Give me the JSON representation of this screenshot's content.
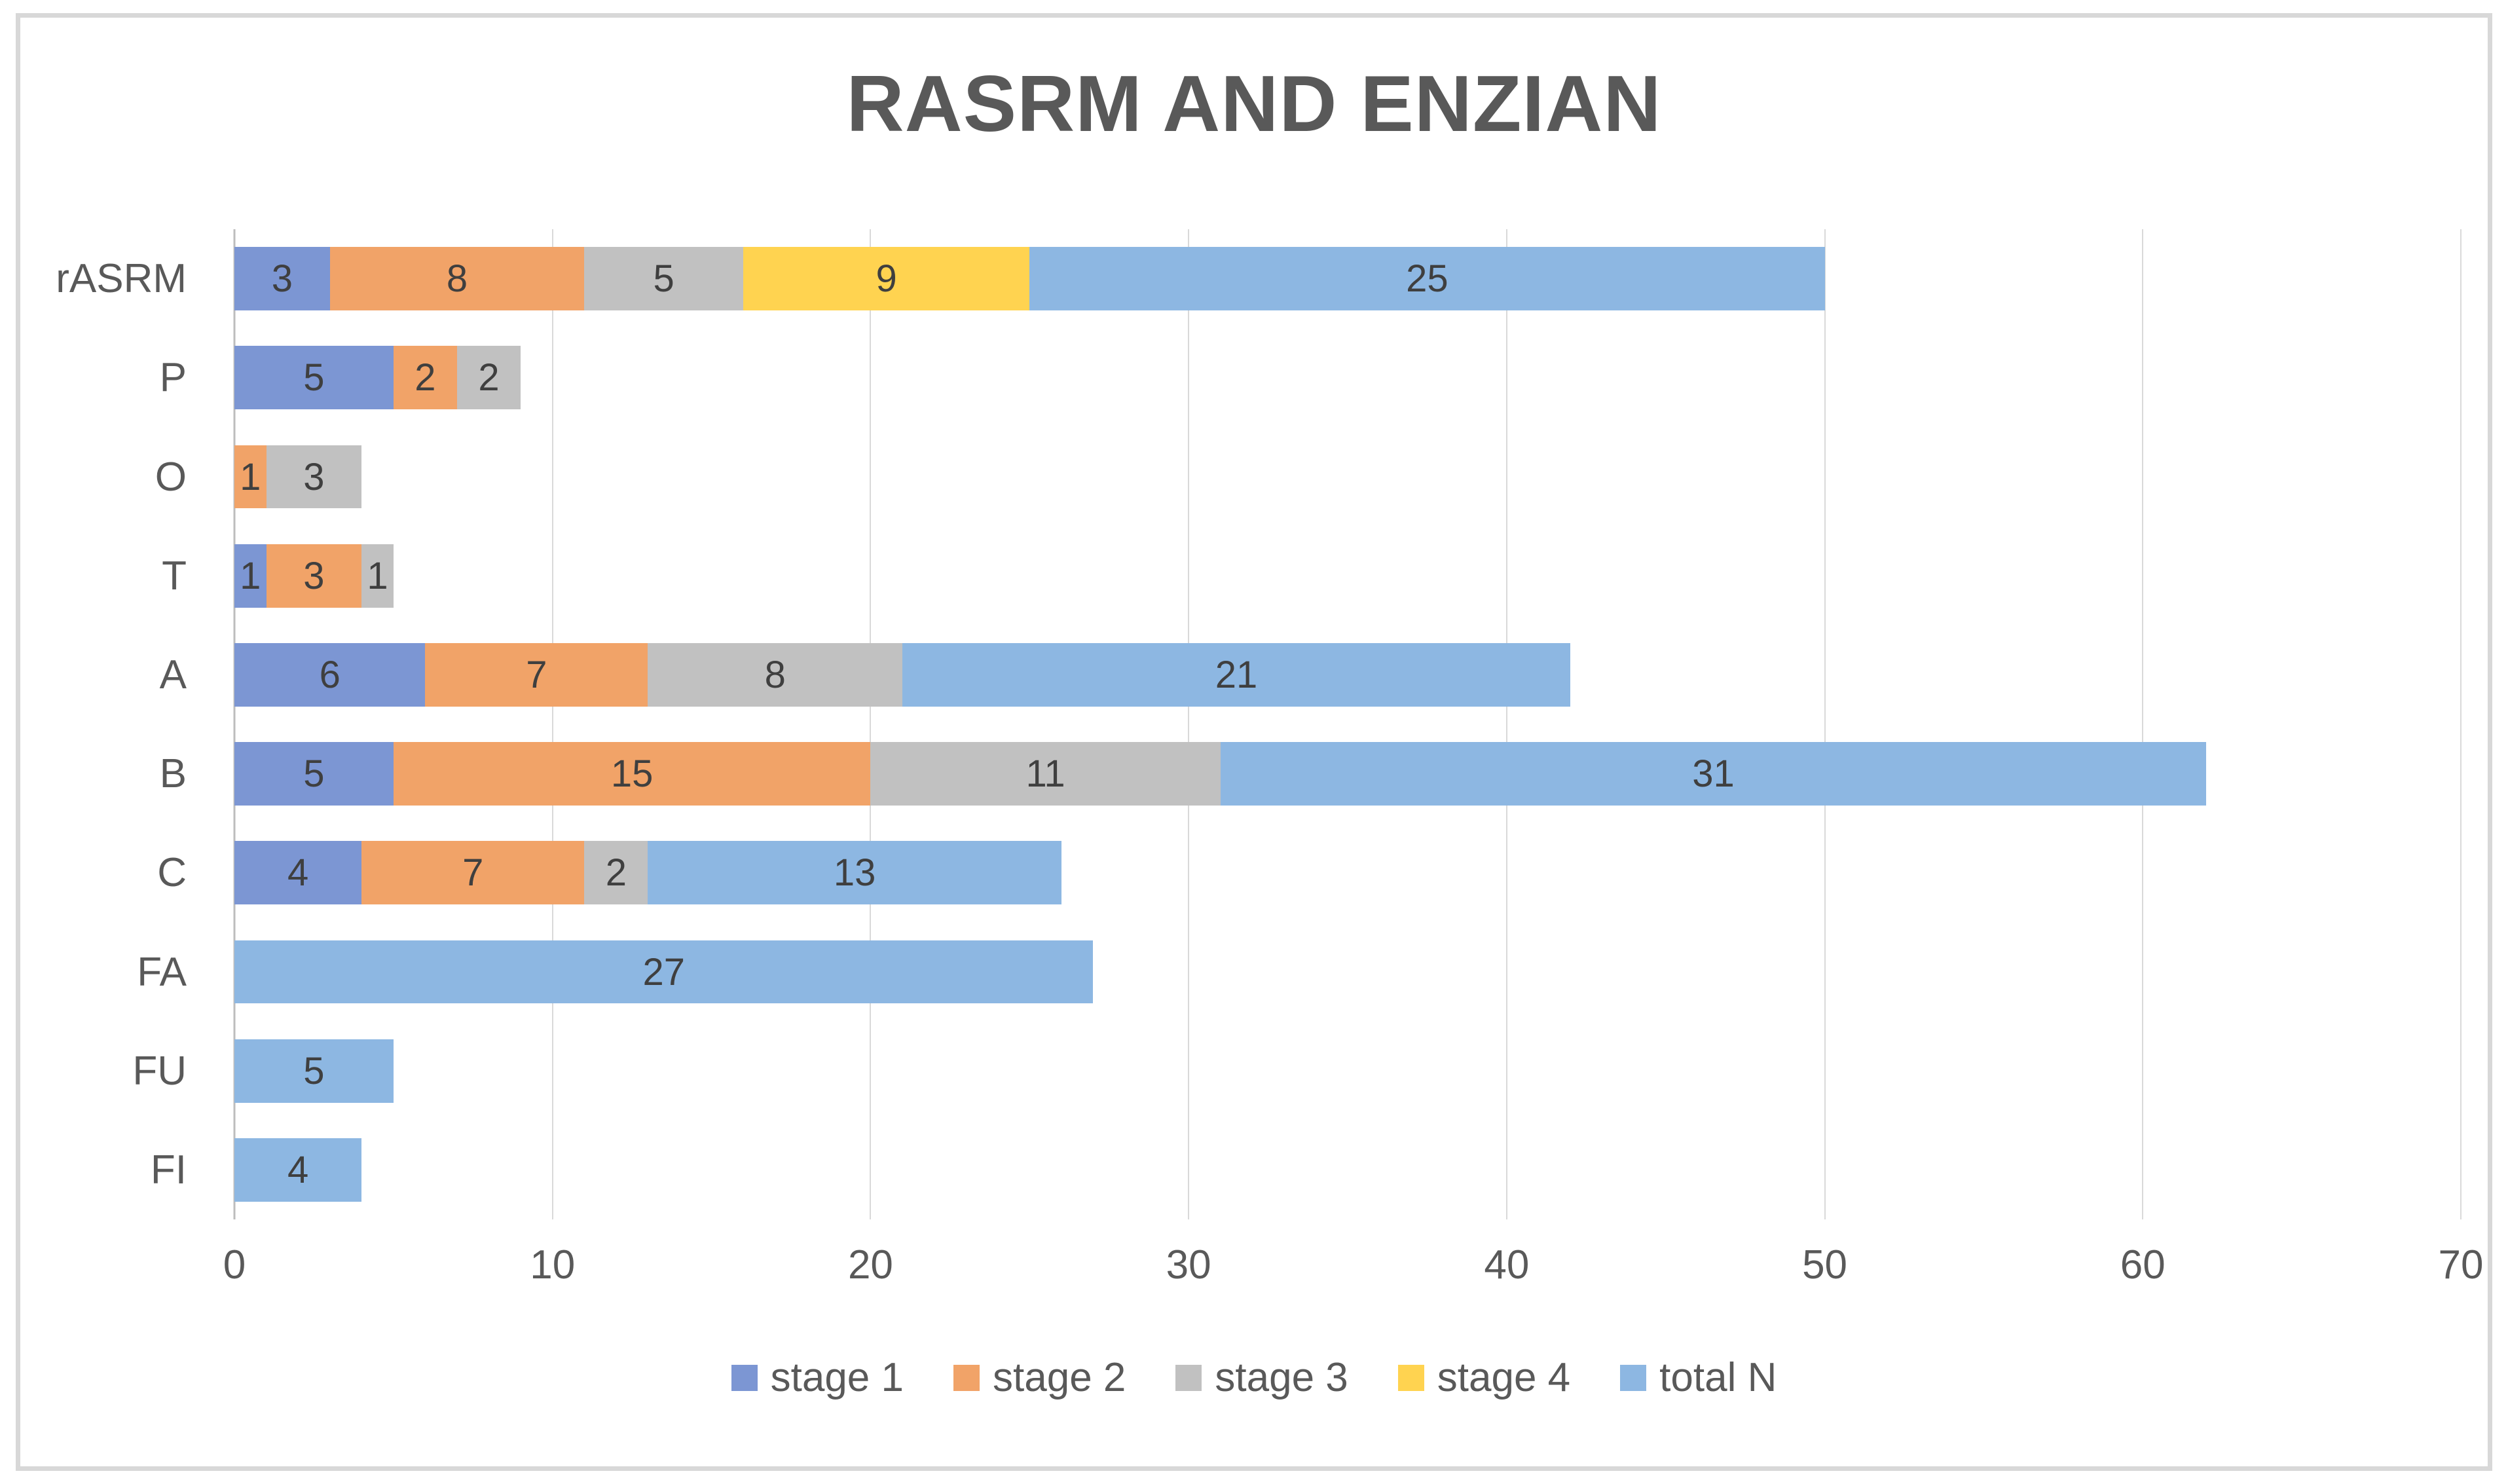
{
  "chart_data": {
    "type": "bar",
    "orientation": "horizontal",
    "stacked": true,
    "title": "RASRM AND ENZIAN",
    "categories": [
      "rASRM",
      "P",
      "O",
      "T",
      "A",
      "B",
      "C",
      "FA",
      "FU",
      "FI"
    ],
    "series": [
      {
        "name": "stage 1",
        "color": "#7C96D3",
        "values": [
          3,
          5,
          0,
          1,
          6,
          5,
          4,
          0,
          0,
          0
        ]
      },
      {
        "name": "stage 2",
        "color": "#F1A368",
        "values": [
          8,
          2,
          1,
          3,
          7,
          15,
          7,
          0,
          0,
          0
        ]
      },
      {
        "name": "stage 3",
        "color": "#C1C1C1",
        "values": [
          5,
          2,
          3,
          1,
          8,
          11,
          2,
          0,
          0,
          0
        ]
      },
      {
        "name": "stage 4",
        "color": "#FFD350",
        "values": [
          9,
          0,
          0,
          0,
          0,
          0,
          0,
          0,
          0,
          0
        ]
      },
      {
        "name": "total N",
        "color": "#8DB7E2",
        "values": [
          25,
          0,
          0,
          0,
          21,
          31,
          13,
          27,
          5,
          4
        ]
      }
    ],
    "xlim": [
      0,
      70
    ],
    "xticks": [
      "0",
      "10",
      "20",
      "30",
      "40",
      "50",
      "60",
      "70"
    ],
    "grid": true,
    "legend_position": "bottom",
    "style_colors": {
      "gridline": "#D9D9D9",
      "axis_line": "#BDBDBD",
      "title_text": "#595959",
      "label_text": "#595959",
      "value_text": "#3F3F3F",
      "border": "#D8D8D8"
    }
  }
}
